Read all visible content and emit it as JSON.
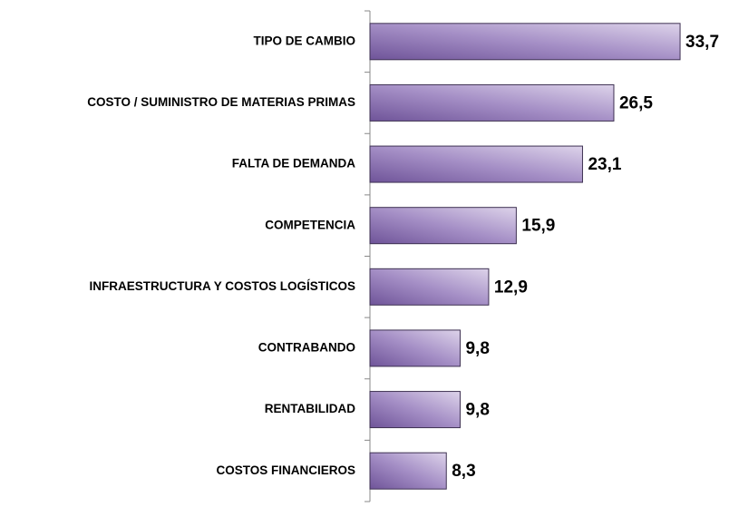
{
  "chart_data": {
    "type": "bar",
    "orientation": "horizontal",
    "categories": [
      "TIPO DE CAMBIO",
      "COSTO / SUMINISTRO DE MATERIAS PRIMAS",
      "FALTA DE DEMANDA",
      "COMPETENCIA",
      "INFRAESTRUCTURA Y COSTOS LOGÍSTICOS",
      "CONTRABANDO",
      "RENTABILIDAD",
      "COSTOS FINANCIEROS"
    ],
    "values": [
      33.7,
      26.5,
      23.1,
      15.9,
      12.9,
      9.8,
      9.8,
      8.3
    ],
    "value_labels": [
      "33,7",
      "26,5",
      "23,1",
      "15,9",
      "12,9",
      "9,8",
      "9,8",
      "8,3"
    ],
    "color": "#8e74b8"
  }
}
